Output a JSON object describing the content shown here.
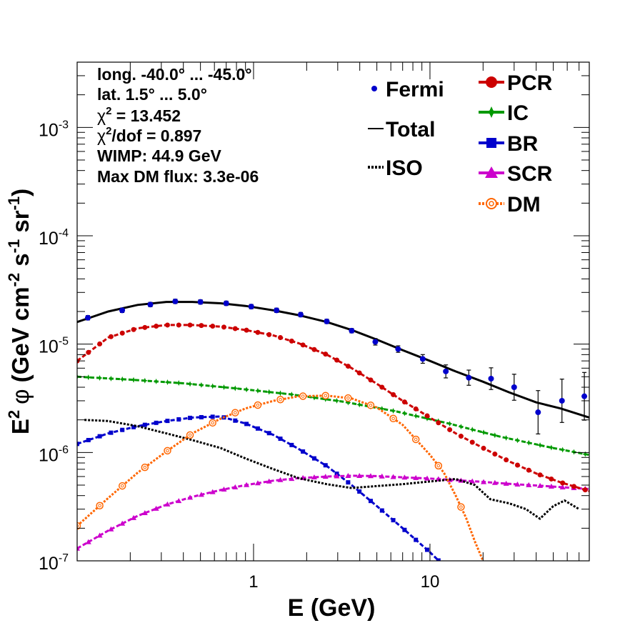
{
  "chart_data": {
    "type": "scatter",
    "xscale": "log",
    "yscale": "log",
    "xlim": [
      0.1,
      80
    ],
    "ylim": [
      1e-07,
      0.004
    ],
    "xlabel": "E (GeV)",
    "ylabel_main": "E",
    "ylabel_sup1": "2",
    "ylabel_phi": "φ",
    "ylabel_unit_open": " (GeV cm",
    "ylabel_sup2": "-2",
    "ylabel_s": " s",
    "ylabel_sup3": "-1",
    "ylabel_sr": " sr",
    "ylabel_sup4": "-1",
    "ylabel_close": ")",
    "x_ticks": [
      {
        "value": 1,
        "label": "1"
      },
      {
        "value": 10,
        "label": "10"
      }
    ],
    "y_ticks": [
      {
        "value": 1e-07,
        "base": "10",
        "exp": "-7"
      },
      {
        "value": 1e-06,
        "base": "10",
        "exp": "-6"
      },
      {
        "value": 1e-05,
        "base": "10",
        "exp": "-5"
      },
      {
        "value": 0.0001,
        "base": "10",
        "exp": "-4"
      },
      {
        "value": 0.001,
        "base": "10",
        "exp": "-3"
      }
    ],
    "info": {
      "longitude": "long. -40.0° ... -45.0°",
      "latitude": "lat. 1.5° ... 5.0°",
      "chi2_symbol": "χ",
      "chi2_sup": "2",
      "chi2_value": " = 13.452",
      "chi2dof_symbol": "χ",
      "chi2dof_sup": "2",
      "chi2dof_value": "/dof = 0.897",
      "wimp": "WIMP: 44.9 GeV",
      "max_dm_flux": "Max DM flux: 3.3e-06"
    },
    "legend_left": [
      {
        "label": "Fermi",
        "style": "point"
      },
      {
        "label": "Total",
        "style": "line"
      },
      {
        "label": "ISO",
        "style": "dotted"
      }
    ],
    "legend_right": [
      {
        "label": "PCR",
        "marker": "circle",
        "color": "#cc0000"
      },
      {
        "label": "IC",
        "marker": "star",
        "color": "#009900"
      },
      {
        "label": "BR",
        "marker": "square",
        "color": "#0000cc"
      },
      {
        "label": "SCR",
        "marker": "triangle",
        "color": "#cc00cc"
      },
      {
        "label": "DM",
        "marker": "open-circle",
        "color": "#ff6600"
      }
    ],
    "fermi": {
      "x": [
        0.115,
        0.18,
        0.26,
        0.36,
        0.5,
        0.7,
        0.97,
        1.35,
        1.85,
        2.6,
        3.6,
        4.9,
        6.6,
        9.1,
        12.3,
        16.6,
        22.2,
        30,
        41,
        56,
        75
      ],
      "y": [
        1.75e-05,
        2.05e-05,
        2.32e-05,
        2.48e-05,
        2.45e-05,
        2.38e-05,
        2.22e-05,
        2.05e-05,
        1.87e-05,
        1.62e-05,
        1.33e-05,
        1.05e-05,
        9e-06,
        7.3e-06,
        5.6e-06,
        4.9e-06,
        4.8e-06,
        4e-06,
        2.35e-06,
        3e-06,
        3.3e-06
      ],
      "err": [
        0.02,
        0.02,
        0.02,
        0.02,
        0.02,
        0.02,
        0.02,
        0.02,
        0.02,
        0.02,
        0.02,
        0.03,
        0.03,
        0.04,
        0.06,
        0.07,
        0.1,
        0.12,
        0.2,
        0.2,
        0.22
      ]
    },
    "series": [
      {
        "name": "Total",
        "color": "#000000",
        "style": "solid",
        "width": 3,
        "marker": "none",
        "x": [
          0.1,
          0.15,
          0.22,
          0.32,
          0.45,
          0.65,
          0.9,
          1.3,
          1.8,
          2.6,
          3.6,
          5,
          7,
          10,
          14,
          20,
          28,
          40,
          55,
          80
        ],
        "y": [
          1.6e-05,
          2e-05,
          2.3e-05,
          2.45e-05,
          2.45e-05,
          2.38e-05,
          2.25e-05,
          2.05e-05,
          1.85e-05,
          1.6e-05,
          1.35e-05,
          1.1e-05,
          8.8e-06,
          7e-06,
          5.6e-06,
          4.5e-06,
          3.6e-06,
          2.9e-06,
          2.55e-06,
          2.1e-06
        ]
      },
      {
        "name": "PCR",
        "color": "#cc0000",
        "style": "dashed",
        "width": 3,
        "marker": "circle",
        "x": [
          0.1,
          0.15,
          0.22,
          0.32,
          0.45,
          0.65,
          0.9,
          1.3,
          1.8,
          2.6,
          3.6,
          5,
          7,
          10,
          14,
          20,
          28,
          40,
          55,
          80
        ],
        "y": [
          7e-06,
          1.15e-05,
          1.4e-05,
          1.5e-05,
          1.5e-05,
          1.45e-05,
          1.35e-05,
          1.2e-05,
          1.02e-05,
          8e-06,
          6e-06,
          4.3e-06,
          3e-06,
          2.1e-06,
          1.5e-06,
          1.1e-06,
          8.3e-07,
          6.4e-07,
          5.3e-07,
          4.4e-07
        ]
      },
      {
        "name": "IC",
        "color": "#009900",
        "style": "dashed",
        "width": 3,
        "marker": "star",
        "x": [
          0.1,
          0.2,
          0.4,
          0.8,
          1.6,
          3.2,
          6.4,
          12.8,
          25,
          50,
          80
        ],
        "y": [
          5e-06,
          4.7e-06,
          4.35e-06,
          3.9e-06,
          3.45e-06,
          2.95e-06,
          2.4e-06,
          1.85e-06,
          1.4e-06,
          1.1e-06,
          9.5e-07
        ]
      },
      {
        "name": "BR",
        "color": "#0000cc",
        "style": "dashed",
        "width": 3,
        "marker": "square",
        "x": [
          0.1,
          0.15,
          0.22,
          0.32,
          0.45,
          0.65,
          0.9,
          1.3,
          1.8,
          2.6,
          3.6,
          5,
          7,
          10,
          12
        ],
        "y": [
          1.2e-06,
          1.5e-06,
          1.75e-06,
          1.95e-06,
          2.1e-06,
          2.15e-06,
          1.85e-06,
          1.45e-06,
          1.08e-06,
          7.5e-07,
          5e-07,
          3.2e-07,
          2e-07,
          1.2e-07,
          9e-08
        ]
      },
      {
        "name": "SCR",
        "color": "#cc00cc",
        "style": "dashed",
        "width": 3,
        "marker": "triangle",
        "x": [
          0.1,
          0.15,
          0.22,
          0.32,
          0.45,
          0.65,
          0.9,
          1.3,
          1.8,
          2.6,
          3.6,
          5,
          7,
          10,
          14,
          20,
          30,
          45,
          80
        ],
        "y": [
          1.3e-07,
          1.9e-07,
          2.6e-07,
          3.3e-07,
          3.9e-07,
          4.5e-07,
          5e-07,
          5.5e-07,
          5.8e-07,
          6e-07,
          6.1e-07,
          6.05e-07,
          5.9e-07,
          5.75e-07,
          5.55e-07,
          5.35e-07,
          5.1e-07,
          4.9e-07,
          4.6e-07
        ]
      },
      {
        "name": "DM",
        "color": "#ff6600",
        "style": "dotted",
        "width": 3,
        "marker": "open-circle",
        "x": [
          0.1,
          0.15,
          0.22,
          0.32,
          0.45,
          0.65,
          0.9,
          1.3,
          1.8,
          2.6,
          3.6,
          5,
          7,
          10,
          12,
          14,
          16,
          18,
          20
        ],
        "y": [
          2.1e-07,
          3.8e-07,
          6.5e-07,
          1.02e-06,
          1.5e-06,
          2.05e-06,
          2.55e-06,
          3e-06,
          3.3e-06,
          3.35e-06,
          3.15e-06,
          2.6e-06,
          1.8e-06,
          9.5e-07,
          6.5e-07,
          4e-07,
          2.5e-07,
          1.5e-07,
          1e-07
        ]
      },
      {
        "name": "ISO",
        "color": "#000000",
        "style": "dotted",
        "width": 3,
        "marker": "none",
        "x": [
          0.11,
          0.15,
          0.22,
          0.32,
          0.45,
          0.65,
          0.9,
          1.3,
          1.8,
          2.6,
          3.6,
          5,
          7,
          10,
          14,
          18,
          22,
          28,
          35,
          42,
          50,
          58,
          70
        ],
        "y": [
          2e-06,
          1.95e-06,
          1.75e-06,
          1.5e-06,
          1.3e-06,
          1.1e-06,
          8.8e-07,
          7e-07,
          5.8e-07,
          5.1e-07,
          4.7e-07,
          4.9e-07,
          5.1e-07,
          5.4e-07,
          5.7e-07,
          5e-07,
          3.7e-07,
          3.4e-07,
          3e-07,
          2.45e-07,
          3.2e-07,
          3.6e-07,
          3e-07
        ]
      }
    ]
  }
}
